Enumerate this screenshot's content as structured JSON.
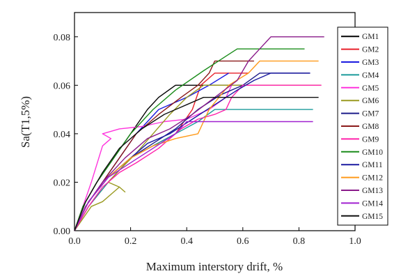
{
  "chart_data": {
    "type": "line",
    "title": "",
    "xlabel": "Maximum interstory drift, %",
    "ylabel": "Sa(T1,5%)",
    "xlim": [
      0,
      1.0
    ],
    "ylim": [
      0,
      0.09
    ],
    "x_ticks": [
      "0.0",
      "0.2",
      "0.4",
      "0.6",
      "0.8",
      "1.0"
    ],
    "y_ticks": [
      "0.00",
      "0.02",
      "0.04",
      "0.06",
      "0.08"
    ],
    "legend_position": "right",
    "grid": false,
    "series": [
      {
        "name": "GM1",
        "color": "#000000",
        "points": [
          [
            0,
            0
          ],
          [
            0.03,
            0.01
          ],
          [
            0.08,
            0.02
          ],
          [
            0.14,
            0.03
          ],
          [
            0.2,
            0.04
          ],
          [
            0.26,
            0.05
          ],
          [
            0.3,
            0.055
          ],
          [
            0.36,
            0.06
          ],
          [
            0.44,
            0.06
          ],
          [
            0.52,
            0.06
          ],
          [
            0.6,
            0.06
          ]
        ]
      },
      {
        "name": "GM2",
        "color": "#e8202a",
        "points": [
          [
            0,
            0
          ],
          [
            0.05,
            0.01
          ],
          [
            0.12,
            0.02
          ],
          [
            0.2,
            0.03
          ],
          [
            0.28,
            0.035
          ],
          [
            0.36,
            0.04
          ],
          [
            0.42,
            0.05
          ],
          [
            0.45,
            0.06
          ],
          [
            0.5,
            0.065
          ],
          [
            0.62,
            0.065
          ]
        ]
      },
      {
        "name": "GM3",
        "color": "#1a1ae0",
        "points": [
          [
            0,
            0
          ],
          [
            0.04,
            0.01
          ],
          [
            0.1,
            0.02
          ],
          [
            0.16,
            0.03
          ],
          [
            0.22,
            0.04
          ],
          [
            0.3,
            0.05
          ],
          [
            0.4,
            0.055
          ],
          [
            0.48,
            0.06
          ],
          [
            0.55,
            0.065
          ]
        ]
      },
      {
        "name": "GM4",
        "color": "#1a9a9a",
        "points": [
          [
            0,
            0
          ],
          [
            0.05,
            0.01
          ],
          [
            0.12,
            0.02
          ],
          [
            0.2,
            0.03
          ],
          [
            0.28,
            0.035
          ],
          [
            0.36,
            0.04
          ],
          [
            0.44,
            0.045
          ],
          [
            0.5,
            0.05
          ],
          [
            0.85,
            0.05
          ]
        ]
      },
      {
        "name": "GM5",
        "color": "#ff33dd",
        "points": [
          [
            0,
            0
          ],
          [
            0.06,
            0.02
          ],
          [
            0.1,
            0.035
          ],
          [
            0.13,
            0.038
          ],
          [
            0.1,
            0.04
          ],
          [
            0.16,
            0.042
          ],
          [
            0.24,
            0.043
          ],
          [
            0.32,
            0.045
          ],
          [
            0.4,
            0.046
          ],
          [
            0.48,
            0.05
          ],
          [
            0.54,
            0.055
          ],
          [
            0.56,
            0.06
          ],
          [
            0.58,
            0.06
          ]
        ]
      },
      {
        "name": "GM6",
        "color": "#9a9a20",
        "points": [
          [
            0,
            0
          ],
          [
            0.06,
            0.01
          ],
          [
            0.1,
            0.012
          ],
          [
            0.14,
            0.016
          ],
          [
            0.16,
            0.018
          ],
          [
            0.18,
            0.016
          ],
          [
            0.16,
            0.018
          ],
          [
            0.12,
            0.02
          ],
          [
            0.16,
            0.025
          ],
          [
            0.22,
            0.032
          ],
          [
            0.28,
            0.04
          ],
          [
            0.34,
            0.048
          ],
          [
            0.4,
            0.055
          ],
          [
            0.46,
            0.06
          ],
          [
            0.88,
            0.06
          ]
        ]
      },
      {
        "name": "GM7",
        "color": "#1c1c8a",
        "points": [
          [
            0,
            0
          ],
          [
            0.05,
            0.012
          ],
          [
            0.12,
            0.022
          ],
          [
            0.2,
            0.03
          ],
          [
            0.28,
            0.036
          ],
          [
            0.36,
            0.042
          ],
          [
            0.44,
            0.05
          ],
          [
            0.52,
            0.056
          ],
          [
            0.6,
            0.06
          ],
          [
            0.66,
            0.065
          ],
          [
            0.84,
            0.065
          ]
        ]
      },
      {
        "name": "GM8",
        "color": "#8b1a1a",
        "points": [
          [
            0,
            0
          ],
          [
            0.04,
            0.01
          ],
          [
            0.1,
            0.02
          ],
          [
            0.16,
            0.03
          ],
          [
            0.22,
            0.04
          ],
          [
            0.3,
            0.048
          ],
          [
            0.38,
            0.055
          ],
          [
            0.44,
            0.06
          ],
          [
            0.48,
            0.065
          ],
          [
            0.5,
            0.07
          ],
          [
            0.64,
            0.07
          ]
        ]
      },
      {
        "name": "GM9",
        "color": "#ff22aa",
        "points": [
          [
            0,
            0
          ],
          [
            0.05,
            0.01
          ],
          [
            0.1,
            0.018
          ],
          [
            0.16,
            0.024
          ],
          [
            0.22,
            0.028
          ],
          [
            0.3,
            0.034
          ],
          [
            0.38,
            0.042
          ],
          [
            0.44,
            0.046
          ],
          [
            0.5,
            0.048
          ],
          [
            0.54,
            0.05
          ],
          [
            0.56,
            0.055
          ],
          [
            0.6,
            0.06
          ],
          [
            0.88,
            0.06
          ]
        ]
      },
      {
        "name": "GM10",
        "color": "#1a8c1a",
        "points": [
          [
            0,
            0
          ],
          [
            0.03,
            0.01
          ],
          [
            0.08,
            0.02
          ],
          [
            0.14,
            0.03
          ],
          [
            0.2,
            0.04
          ],
          [
            0.28,
            0.05
          ],
          [
            0.36,
            0.058
          ],
          [
            0.46,
            0.066
          ],
          [
            0.54,
            0.072
          ],
          [
            0.58,
            0.075
          ],
          [
            0.82,
            0.075
          ]
        ]
      },
      {
        "name": "GM11",
        "color": "#1a1aa0",
        "points": [
          [
            0,
            0
          ],
          [
            0.05,
            0.012
          ],
          [
            0.12,
            0.022
          ],
          [
            0.2,
            0.03
          ],
          [
            0.26,
            0.036
          ],
          [
            0.34,
            0.04
          ],
          [
            0.42,
            0.046
          ],
          [
            0.5,
            0.052
          ],
          [
            0.58,
            0.058
          ],
          [
            0.64,
            0.062
          ],
          [
            0.7,
            0.065
          ],
          [
            0.84,
            0.065
          ]
        ]
      },
      {
        "name": "GM12",
        "color": "#ff9a1a",
        "points": [
          [
            0,
            0
          ],
          [
            0.05,
            0.012
          ],
          [
            0.12,
            0.022
          ],
          [
            0.2,
            0.03
          ],
          [
            0.28,
            0.035
          ],
          [
            0.36,
            0.038
          ],
          [
            0.44,
            0.04
          ],
          [
            0.48,
            0.05
          ],
          [
            0.55,
            0.06
          ],
          [
            0.62,
            0.065
          ],
          [
            0.66,
            0.07
          ],
          [
            0.87,
            0.07
          ]
        ]
      },
      {
        "name": "GM13",
        "color": "#8a1a8a",
        "points": [
          [
            0,
            0
          ],
          [
            0.04,
            0.01
          ],
          [
            0.1,
            0.02
          ],
          [
            0.18,
            0.03
          ],
          [
            0.26,
            0.038
          ],
          [
            0.34,
            0.042
          ],
          [
            0.42,
            0.048
          ],
          [
            0.5,
            0.055
          ],
          [
            0.58,
            0.062
          ],
          [
            0.62,
            0.07
          ],
          [
            0.66,
            0.075
          ],
          [
            0.7,
            0.08
          ],
          [
            0.89,
            0.08
          ]
        ]
      },
      {
        "name": "GM14",
        "color": "#a020d0",
        "points": [
          [
            0,
            0
          ],
          [
            0.05,
            0.012
          ],
          [
            0.12,
            0.022
          ],
          [
            0.2,
            0.028
          ],
          [
            0.28,
            0.034
          ],
          [
            0.36,
            0.04
          ],
          [
            0.4,
            0.045
          ],
          [
            0.85,
            0.045
          ]
        ]
      },
      {
        "name": "GM15",
        "color": "#111111",
        "points": [
          [
            0,
            0
          ],
          [
            0.04,
            0.012
          ],
          [
            0.1,
            0.024
          ],
          [
            0.16,
            0.034
          ],
          [
            0.24,
            0.042
          ],
          [
            0.32,
            0.048
          ],
          [
            0.4,
            0.052
          ],
          [
            0.46,
            0.055
          ],
          [
            0.87,
            0.055
          ]
        ]
      }
    ]
  }
}
